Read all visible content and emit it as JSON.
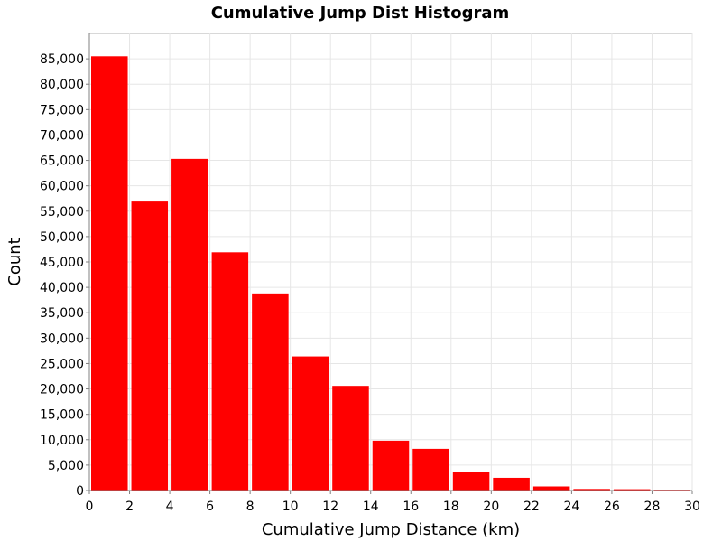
{
  "chart_data": {
    "type": "bar",
    "title": "Cumulative Jump Dist Histogram",
    "xlabel": "Cumulative Jump Distance (km)",
    "ylabel": "Count",
    "bin_width": 2,
    "bins": [
      {
        "x0": 0,
        "x1": 2,
        "value": 85500
      },
      {
        "x0": 2,
        "x1": 4,
        "value": 56900
      },
      {
        "x0": 4,
        "x1": 6,
        "value": 65300
      },
      {
        "x0": 6,
        "x1": 8,
        "value": 46900
      },
      {
        "x0": 8,
        "x1": 10,
        "value": 38800
      },
      {
        "x0": 10,
        "x1": 12,
        "value": 26400
      },
      {
        "x0": 12,
        "x1": 14,
        "value": 20600
      },
      {
        "x0": 14,
        "x1": 16,
        "value": 9800
      },
      {
        "x0": 16,
        "x1": 18,
        "value": 8200
      },
      {
        "x0": 18,
        "x1": 20,
        "value": 3700
      },
      {
        "x0": 20,
        "x1": 22,
        "value": 2500
      },
      {
        "x0": 22,
        "x1": 24,
        "value": 800
      },
      {
        "x0": 24,
        "x1": 26,
        "value": 300
      },
      {
        "x0": 26,
        "x1": 28,
        "value": 250
      },
      {
        "x0": 28,
        "x1": 30,
        "value": 150
      }
    ],
    "xlim": [
      0,
      30
    ],
    "ylim": [
      0,
      90000
    ],
    "xticks": [
      0,
      2,
      4,
      6,
      8,
      10,
      12,
      14,
      16,
      18,
      20,
      22,
      24,
      26,
      28,
      30
    ],
    "xtick_labels": [
      "0",
      "2",
      "4",
      "6",
      "8",
      "10",
      "12",
      "14",
      "16",
      "18",
      "20",
      "22",
      "24",
      "26",
      "28",
      "30"
    ],
    "yticks": [
      0,
      5000,
      10000,
      15000,
      20000,
      25000,
      30000,
      35000,
      40000,
      45000,
      50000,
      55000,
      60000,
      65000,
      70000,
      75000,
      80000,
      85000
    ],
    "ytick_labels": [
      "0",
      "5,000",
      "10,000",
      "15,000",
      "20,000",
      "25,000",
      "30,000",
      "35,000",
      "40,000",
      "45,000",
      "50,000",
      "55,000",
      "60,000",
      "65,000",
      "70,000",
      "75,000",
      "80,000",
      "85,000"
    ],
    "grid": true,
    "legend": "none",
    "bar_color": "#ff0000",
    "grid_color": "#e6e6e6"
  }
}
